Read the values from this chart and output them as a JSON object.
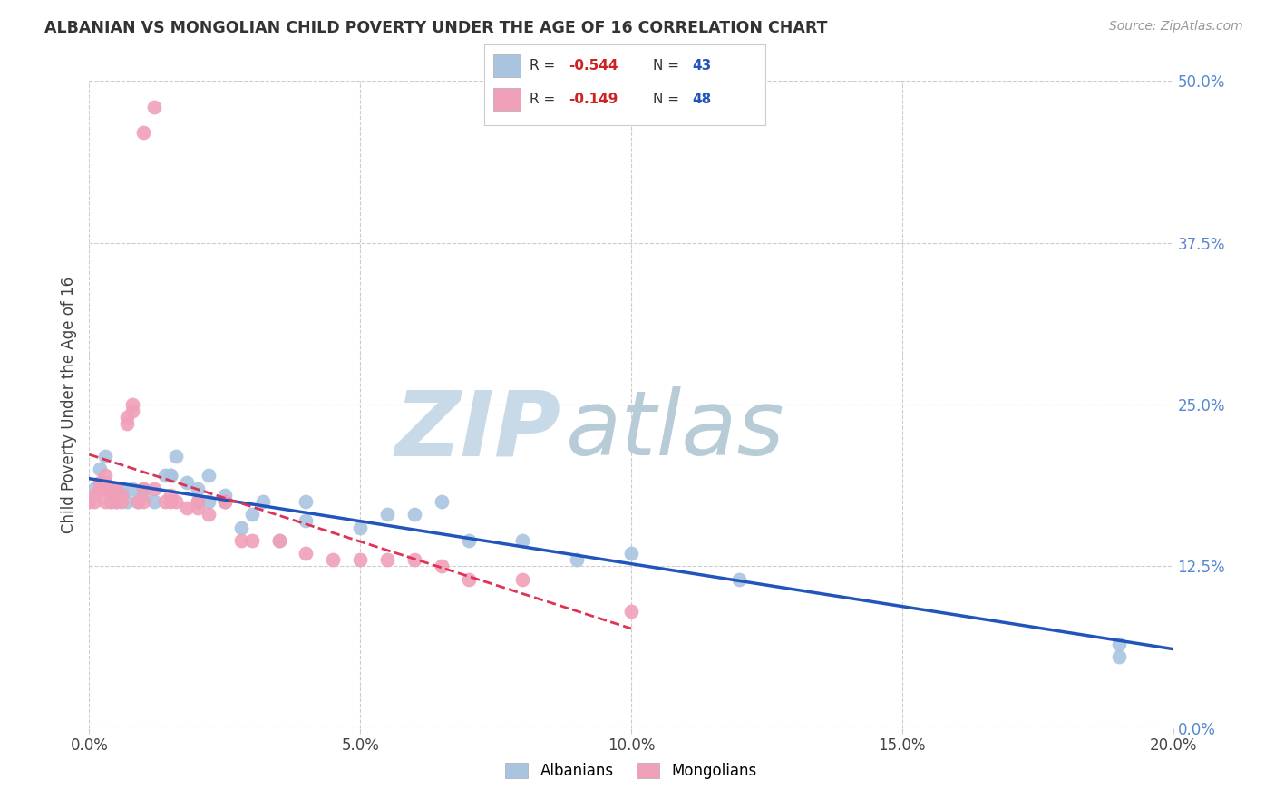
{
  "title": "ALBANIAN VS MONGOLIAN CHILD POVERTY UNDER THE AGE OF 16 CORRELATION CHART",
  "source": "Source: ZipAtlas.com",
  "ylabel": "Child Poverty Under the Age of 16",
  "xlabel_ticks": [
    "0.0%",
    "5.0%",
    "10.0%",
    "15.0%",
    "20.0%"
  ],
  "xlabel_vals": [
    0.0,
    0.05,
    0.1,
    0.15,
    0.2
  ],
  "ylabel_ticks": [
    "0.0%",
    "12.5%",
    "25.0%",
    "37.5%",
    "50.0%"
  ],
  "ylabel_vals": [
    0.0,
    0.125,
    0.25,
    0.375,
    0.5
  ],
  "xlim": [
    0.0,
    0.2
  ],
  "ylim": [
    0.0,
    0.5
  ],
  "albanian_R": -0.544,
  "albanian_N": 43,
  "mongolian_R": -0.149,
  "mongolian_N": 48,
  "albanian_color": "#aac4e0",
  "mongolian_color": "#f0a0b8",
  "albanian_line_color": "#2255bb",
  "mongolian_line_color": "#dd3355",
  "background_color": "#ffffff",
  "watermark_zip": "ZIP",
  "watermark_atlas": "atlas",
  "watermark_color_zip": "#c8dae8",
  "watermark_color_atlas": "#b8ccd8",
  "albanian_x": [
    0.001,
    0.002,
    0.003,
    0.003,
    0.004,
    0.005,
    0.005,
    0.006,
    0.006,
    0.007,
    0.008,
    0.009,
    0.01,
    0.01,
    0.012,
    0.014,
    0.015,
    0.015,
    0.016,
    0.018,
    0.02,
    0.02,
    0.022,
    0.022,
    0.025,
    0.025,
    0.028,
    0.03,
    0.032,
    0.035,
    0.04,
    0.04,
    0.05,
    0.055,
    0.06,
    0.065,
    0.07,
    0.08,
    0.09,
    0.1,
    0.12,
    0.19,
    0.19
  ],
  "albanian_y": [
    0.185,
    0.2,
    0.185,
    0.21,
    0.175,
    0.185,
    0.175,
    0.185,
    0.18,
    0.175,
    0.185,
    0.175,
    0.18,
    0.185,
    0.175,
    0.195,
    0.195,
    0.195,
    0.21,
    0.19,
    0.175,
    0.185,
    0.175,
    0.195,
    0.175,
    0.18,
    0.155,
    0.165,
    0.175,
    0.145,
    0.16,
    0.175,
    0.155,
    0.165,
    0.165,
    0.175,
    0.145,
    0.145,
    0.13,
    0.135,
    0.115,
    0.055,
    0.065
  ],
  "mongolian_x": [
    0.0,
    0.001,
    0.001,
    0.002,
    0.002,
    0.003,
    0.003,
    0.003,
    0.003,
    0.004,
    0.004,
    0.004,
    0.005,
    0.005,
    0.006,
    0.006,
    0.007,
    0.007,
    0.008,
    0.008,
    0.009,
    0.01,
    0.01,
    0.01,
    0.012,
    0.012,
    0.014,
    0.015,
    0.015,
    0.016,
    0.018,
    0.02,
    0.02,
    0.022,
    0.025,
    0.025,
    0.028,
    0.03,
    0.035,
    0.04,
    0.045,
    0.05,
    0.055,
    0.06,
    0.065,
    0.07,
    0.08,
    0.1
  ],
  "mongolian_y": [
    0.175,
    0.175,
    0.18,
    0.185,
    0.19,
    0.185,
    0.19,
    0.195,
    0.175,
    0.185,
    0.175,
    0.185,
    0.185,
    0.175,
    0.18,
    0.175,
    0.235,
    0.24,
    0.245,
    0.25,
    0.175,
    0.175,
    0.185,
    0.46,
    0.48,
    0.185,
    0.175,
    0.18,
    0.175,
    0.175,
    0.17,
    0.17,
    0.175,
    0.165,
    0.175,
    0.175,
    0.145,
    0.145,
    0.145,
    0.135,
    0.13,
    0.13,
    0.13,
    0.13,
    0.125,
    0.115,
    0.115,
    0.09
  ]
}
